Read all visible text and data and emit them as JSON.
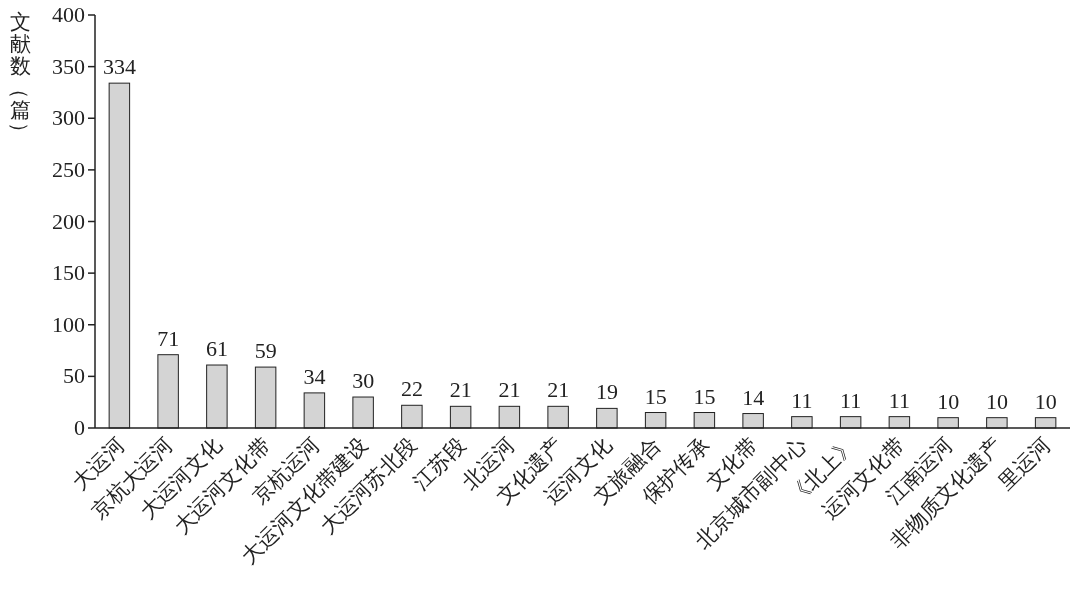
{
  "chart_data": {
    "type": "bar",
    "ylabel": "文献数（篇）",
    "categories": [
      "大运河",
      "京杭大运河",
      "大运河文化",
      "大运河文化带",
      "京杭运河",
      "大运河文化带建设",
      "大运河苏北段",
      "江苏段",
      "北运河",
      "文化遗产",
      "运河文化",
      "文旅融合",
      "保护传承",
      "文化带",
      "北京城市副中心",
      "《北上》",
      "运河文化带",
      "江南运河",
      "非物质文化遗产",
      "里运河"
    ],
    "values": [
      334,
      71,
      61,
      59,
      34,
      30,
      22,
      21,
      21,
      21,
      19,
      15,
      15,
      14,
      11,
      11,
      11,
      10,
      10,
      10
    ],
    "color": "#d4d4d4",
    "ylim": [
      0,
      400
    ],
    "yticks": [
      0,
      50,
      100,
      150,
      200,
      250,
      300,
      350,
      400
    ],
    "data_labels": true,
    "grid": false
  }
}
